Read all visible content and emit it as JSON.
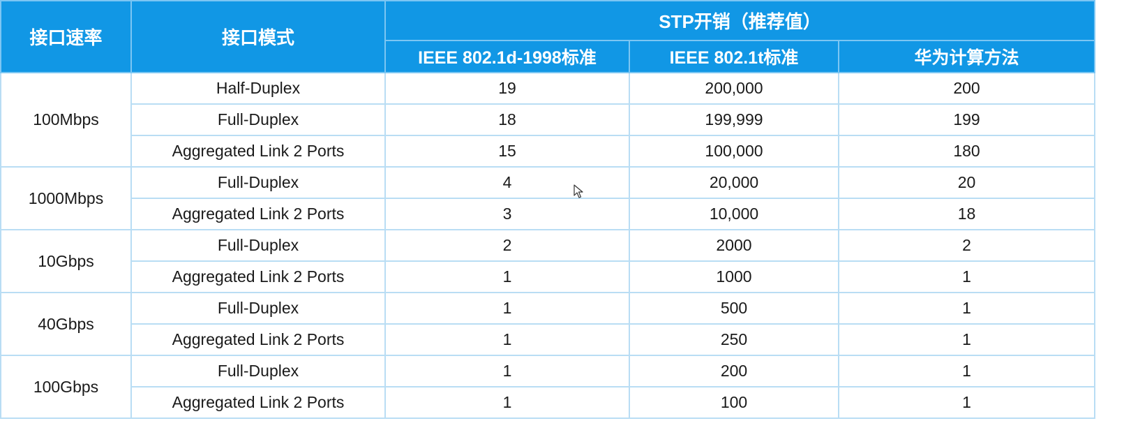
{
  "header": {
    "speed": "接口速率",
    "mode": "接口模式",
    "group": "STP开销（推荐值）",
    "standards": [
      "IEEE 802.1d-1998标准",
      "IEEE 802.1t标准",
      "华为计算方法"
    ]
  },
  "groups": [
    {
      "speed": "100Mbps",
      "rows": [
        {
          "mode": "Half-Duplex",
          "d1998": "19",
          "t": "200,000",
          "huawei": "200"
        },
        {
          "mode": "Full-Duplex",
          "d1998": "18",
          "t": "199,999",
          "huawei": "199"
        },
        {
          "mode": "Aggregated Link 2 Ports",
          "d1998": "15",
          "t": "100,000",
          "huawei": "180"
        }
      ]
    },
    {
      "speed": "1000Mbps",
      "rows": [
        {
          "mode": "Full-Duplex",
          "d1998": "4",
          "t": "20,000",
          "huawei": "20"
        },
        {
          "mode": "Aggregated Link 2 Ports",
          "d1998": "3",
          "t": "10,000",
          "huawei": "18"
        }
      ]
    },
    {
      "speed": "10Gbps",
      "rows": [
        {
          "mode": "Full-Duplex",
          "d1998": "2",
          "t": "2000",
          "huawei": "2"
        },
        {
          "mode": "Aggregated Link 2 Ports",
          "d1998": "1",
          "t": "1000",
          "huawei": "1"
        }
      ]
    },
    {
      "speed": "40Gbps",
      "rows": [
        {
          "mode": "Full-Duplex",
          "d1998": "1",
          "t": "500",
          "huawei": "1"
        },
        {
          "mode": "Aggregated Link 2 Ports",
          "d1998": "1",
          "t": "250",
          "huawei": "1"
        }
      ]
    },
    {
      "speed": "100Gbps",
      "rows": [
        {
          "mode": "Full-Duplex",
          "d1998": "1",
          "t": "200",
          "huawei": "1"
        },
        {
          "mode": "Aggregated Link 2 Ports",
          "d1998": "1",
          "t": "100",
          "huawei": "1"
        }
      ]
    }
  ],
  "colors": {
    "header_bg": "#1197e5",
    "header_border": "#7cc6f3",
    "cell_border": "#b9ddf4",
    "text": "#1a1a1a"
  },
  "icons": {
    "cursor": "mouse-pointer-icon"
  }
}
